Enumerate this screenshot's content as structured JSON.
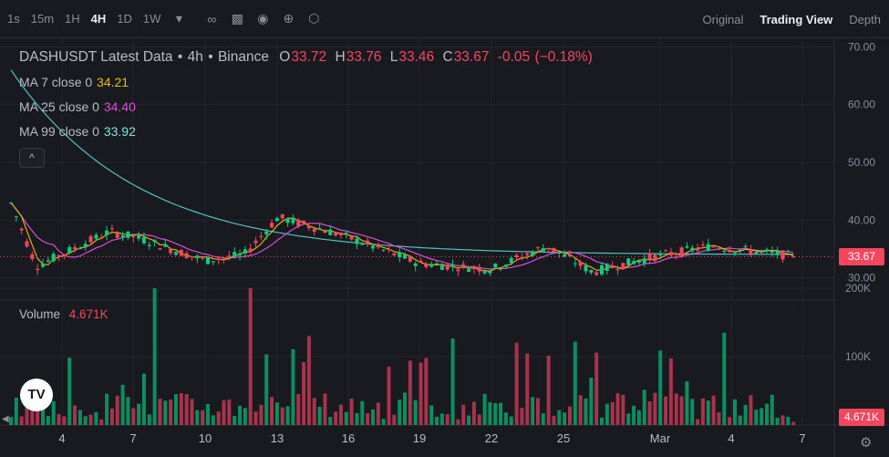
{
  "toolbar": {
    "timeframes": [
      "1s",
      "15m",
      "1H",
      "4H",
      "1D",
      "1W"
    ],
    "active_timeframe": "4H",
    "icons": [
      "dropdown-caret-icon",
      "indicators-icon",
      "candle-type-icon",
      "camera-icon",
      "add-icon",
      "settings-hex-icon"
    ],
    "views": [
      "Original",
      "Trading View",
      "Depth"
    ],
    "active_view": "Trading View"
  },
  "legend": {
    "symbol": "DASHUSDT Latest Data",
    "interval": "4h",
    "exchange": "Binance",
    "open": "33.72",
    "high": "33.76",
    "low": "33.46",
    "close": "33.67",
    "change": "-0.05",
    "change_pct": "(−0.18%)",
    "ma7_label": "MA 7 close 0",
    "ma7_value": "34.21",
    "ma25_label": "MA 25 close 0",
    "ma25_value": "34.40",
    "ma99_label": "MA 99 close 0",
    "ma99_value": "33.92",
    "collapse": "^"
  },
  "volume": {
    "label": "Volume",
    "value": "4.671K",
    "axis": [
      "200K",
      "100K"
    ]
  },
  "price_axis": [
    "70.00",
    "60.00",
    "50.00",
    "40.00",
    "30.00"
  ],
  "current_price": "33.67",
  "current_volume": "4.671K",
  "logo": "TV",
  "colors": {
    "up": "#0ecb81",
    "down": "#f6465d",
    "ma7": "#f0b90b",
    "ma25": "#d94fd3",
    "ma99": "#4fc3c2",
    "background": "#181a20",
    "grid": "#23262e"
  },
  "chart_data": {
    "type": "candlestick",
    "x_ticks": [
      "4",
      "7",
      "10",
      "13",
      "16",
      "19",
      "22",
      "25",
      "Mar",
      "4",
      "7"
    ],
    "y_ticks": [
      70,
      60,
      50,
      40,
      30
    ],
    "ylim": [
      26,
      71
    ],
    "volume_ticks": [
      200000,
      100000
    ],
    "key_levels": [
      {
        "period": "4",
        "price": 44.5
      },
      {
        "period": "6",
        "price": 32
      },
      {
        "period": "7",
        "price": 38
      },
      {
        "period": "10",
        "price": 37
      },
      {
        "period": "12",
        "price": 33
      },
      {
        "period": "13",
        "price": 34
      },
      {
        "period": "15",
        "price": 40.5
      },
      {
        "period": "16",
        "price": 38
      },
      {
        "period": "19",
        "price": 37
      },
      {
        "period": "22",
        "price": 32.5
      },
      {
        "period": "24",
        "price": 31.5
      },
      {
        "period": "26",
        "price": 35.5
      },
      {
        "period": "28",
        "price": 31
      },
      {
        "period": "2",
        "price": 33.5
      },
      {
        "period": "4",
        "price": 35.5
      },
      {
        "period": "6",
        "price": 33.7
      }
    ],
    "moving_averages": {
      "ma7": 34.21,
      "ma25": 34.4,
      "ma99": 33.92
    },
    "last": {
      "open": 33.72,
      "high": 33.76,
      "low": 33.46,
      "close": 33.67,
      "volume": "4.671K"
    }
  }
}
